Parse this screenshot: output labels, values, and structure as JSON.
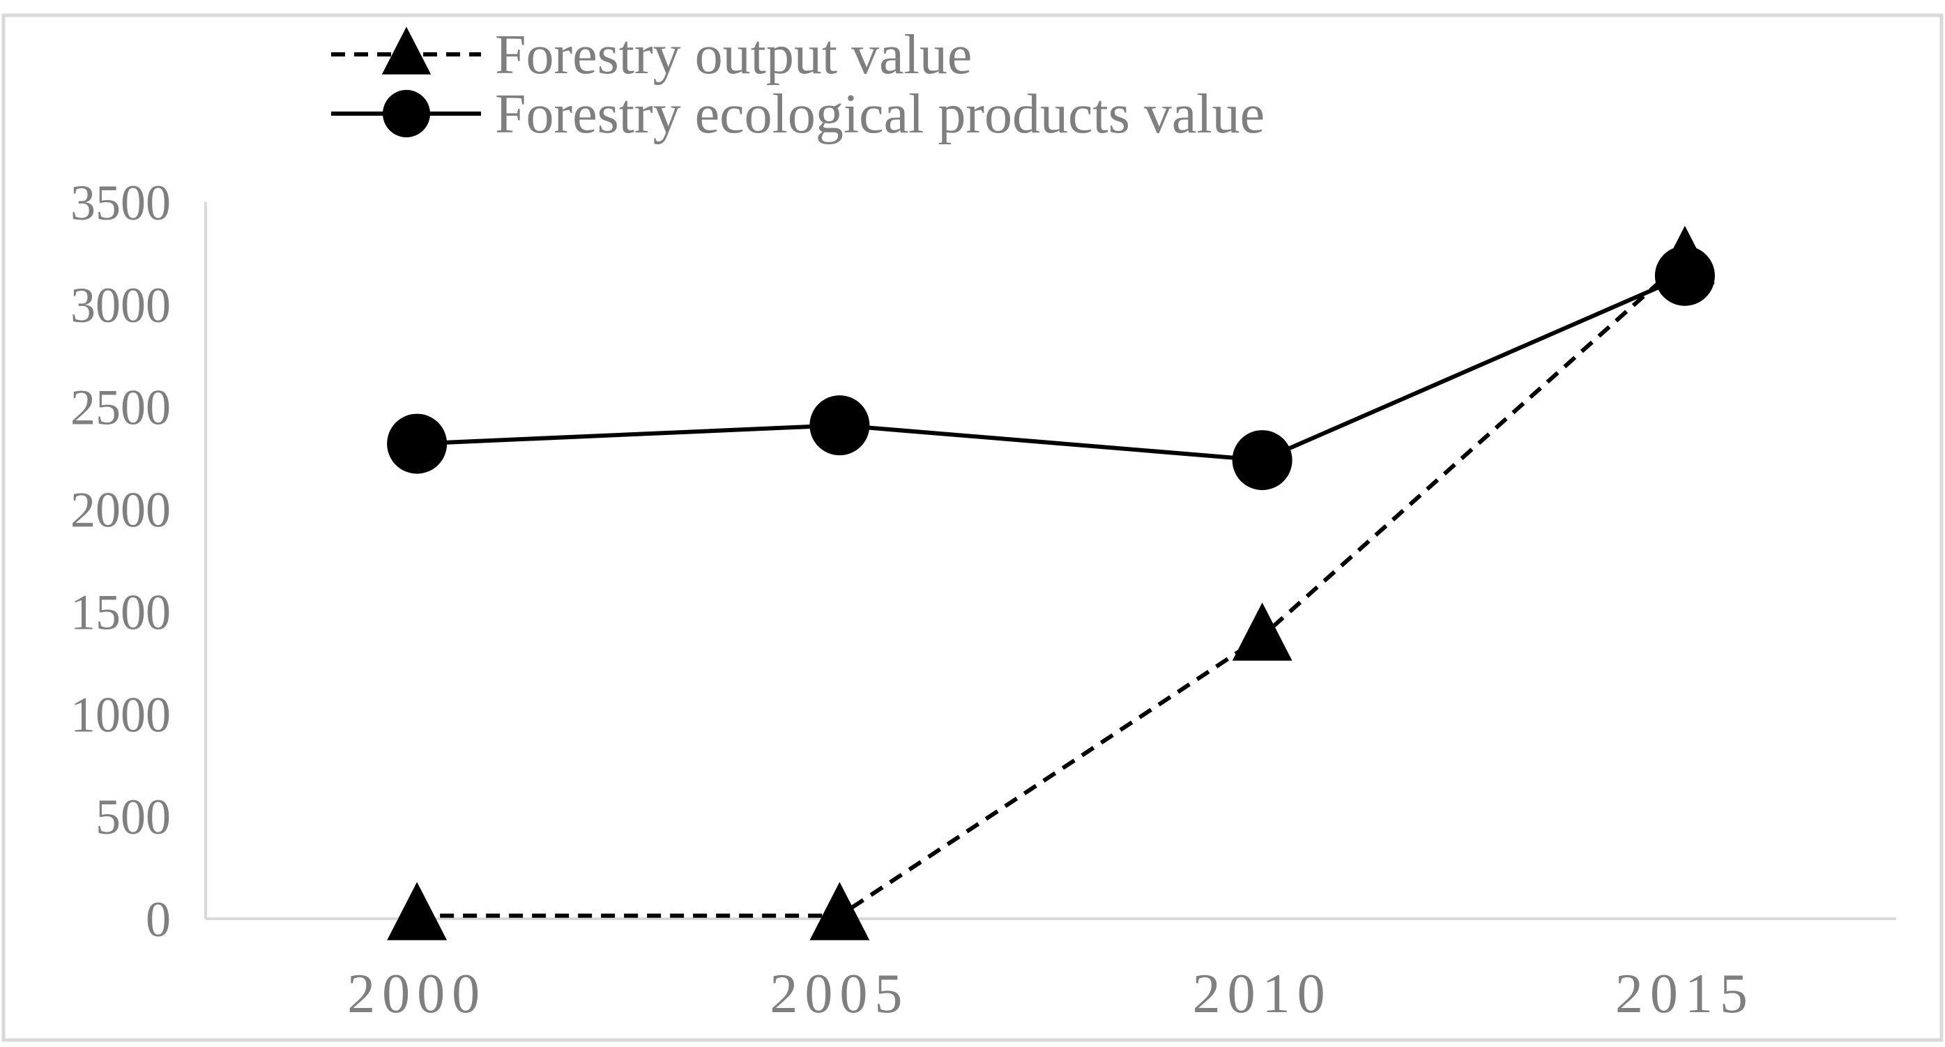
{
  "chart_data": {
    "type": "line",
    "title": "",
    "xlabel": "",
    "ylabel": "",
    "categories": [
      "2000",
      "2005",
      "2010",
      "2015"
    ],
    "ylim": [
      0,
      3500
    ],
    "yticks": [
      0,
      500,
      1000,
      1500,
      2000,
      2500,
      3000,
      3500
    ],
    "grid": false,
    "legend_position": "top-left",
    "series": [
      {
        "name": "Forestry output value",
        "line_style": "dashed",
        "marker": "triangle",
        "color": "#000000",
        "values": [
          15,
          15,
          1380,
          3220
        ]
      },
      {
        "name": "Forestry ecological products value",
        "line_style": "solid",
        "marker": "circle",
        "color": "#000000",
        "values": [
          2320,
          2410,
          2240,
          3140
        ]
      }
    ]
  },
  "colors": {
    "axis": "#d9d9d9",
    "border": "#d9d9d9",
    "text": "#7f7f7f",
    "series": "#000000"
  }
}
